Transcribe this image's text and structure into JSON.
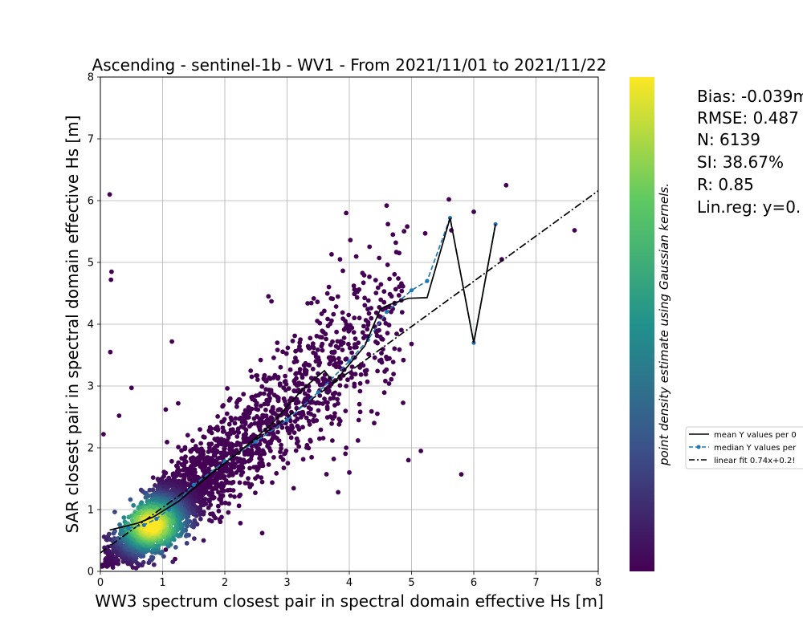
{
  "chart_data": {
    "type": "scatter",
    "title": "Ascending - sentinel-1b - WV1 - From 2021/11/01 to 2021/11/22",
    "xlabel": "WW3 spectrum closest pair in spectral domain effective Hs [m]",
    "ylabel": "SAR closest pair in spectral domain effective Hs [m]",
    "xlim": [
      0,
      8
    ],
    "ylim": [
      0,
      8
    ],
    "xticks": [
      "0",
      "1",
      "2",
      "3",
      "4",
      "5",
      "6",
      "7",
      "8"
    ],
    "yticks": [
      "0",
      "1",
      "2",
      "3",
      "4",
      "5",
      "6",
      "7",
      "8"
    ],
    "grid": true,
    "colorbar_label": "point density estimate using Gaussian kernels.",
    "colormap": [
      "#440154",
      "#3b528b",
      "#21918c",
      "#5ec962",
      "#fde725"
    ],
    "stats_lines": [
      "Bias: -0.039m",
      "RMSE: 0.487",
      "N: 6139",
      "SI: 38.67%",
      "R: 0.85",
      "Lin.reg: y=0."
    ],
    "legend": [
      {
        "label": "mean Y values per 0",
        "style": "solid",
        "color": "#000000"
      },
      {
        "label": "median Y values per",
        "style": "dashed-dots",
        "color": "#1f77b4"
      },
      {
        "label": "linear fit 0.74x+0.2!",
        "style": "dashdot",
        "color": "#000000"
      }
    ],
    "series": [
      {
        "name": "mean Y values per 0",
        "x": [
          0.15,
          0.4,
          0.6,
          0.85,
          1.25,
          1.75,
          2.25,
          2.75,
          3.25,
          3.6,
          3.75,
          4.0,
          4.25,
          4.5,
          4.65,
          4.95,
          5.25,
          5.62,
          6.0,
          6.35
        ],
        "y": [
          0.67,
          0.73,
          0.78,
          0.88,
          1.13,
          1.55,
          1.95,
          2.38,
          2.95,
          3.25,
          3.05,
          3.35,
          3.65,
          4.25,
          4.32,
          4.42,
          4.43,
          5.72,
          3.7,
          5.62
        ]
      },
      {
        "name": "median Y values per",
        "x": [
          0.45,
          0.7,
          0.9,
          1.1,
          1.5,
          2.0,
          2.5,
          3.0,
          3.5,
          4.0,
          4.3,
          4.6,
          5.0,
          5.25,
          5.62,
          6.0,
          6.35
        ],
        "y": [
          0.7,
          0.75,
          0.85,
          1.0,
          1.4,
          1.78,
          2.1,
          2.45,
          2.9,
          3.4,
          3.75,
          4.2,
          4.55,
          4.7,
          5.72,
          3.7,
          5.62
        ]
      },
      {
        "name": "linear fit 0.74x+0.2!",
        "x": [
          0,
          8
        ],
        "y": [
          0.3,
          6.16
        ]
      }
    ],
    "scatter_outliers": [
      [
        0.15,
        6.1
      ],
      [
        0.18,
        4.85
      ],
      [
        0.17,
        4.72
      ],
      [
        0.16,
        3.55
      ],
      [
        1.15,
        3.72
      ],
      [
        0.5,
        2.97
      ],
      [
        0.3,
        2.52
      ],
      [
        0.05,
        2.22
      ],
      [
        3.95,
        5.8
      ],
      [
        3.85,
        5.05
      ],
      [
        4.6,
        5.92
      ],
      [
        4.62,
        5.62
      ],
      [
        4.7,
        5.45
      ],
      [
        4.93,
        5.58
      ],
      [
        5.22,
        5.47
      ],
      [
        5.6,
        6.02
      ],
      [
        5.64,
        5.52
      ],
      [
        6.0,
        5.82
      ],
      [
        6.52,
        6.25
      ],
      [
        7.62,
        5.52
      ],
      [
        6.45,
        5.05
      ],
      [
        5.8,
        1.57
      ],
      [
        5.15,
        1.95
      ],
      [
        4.95,
        1.8
      ],
      [
        5.0,
        3.68
      ],
      [
        4.87,
        3.42
      ],
      [
        3.75,
        1.82
      ],
      [
        3.82,
        1.28
      ],
      [
        4.0,
        1.6
      ],
      [
        3.95,
        2.0
      ],
      [
        4.4,
        2.4
      ],
      [
        4.45,
        2.55
      ],
      [
        2.6,
        0.62
      ],
      [
        2.25,
        0.78
      ],
      [
        2.7,
        4.45
      ],
      [
        2.75,
        4.37
      ],
      [
        1.05,
        0.35
      ],
      [
        1.2,
        0.2
      ],
      [
        1.25,
        2.72
      ],
      [
        1.05,
        2.62
      ],
      [
        0.35,
        0.65
      ]
    ]
  }
}
